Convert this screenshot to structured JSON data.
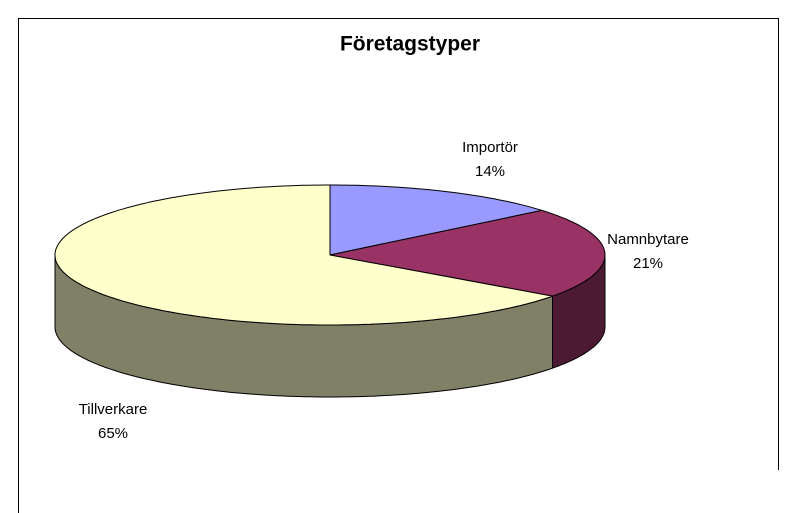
{
  "chart_data": {
    "type": "pie",
    "title": "Företagstyper",
    "categories": [
      "Importör",
      "Namnbytare",
      "Tillverkare"
    ],
    "values": [
      14,
      21,
      65
    ],
    "value_labels": [
      "14%",
      "21%",
      "65%"
    ],
    "colors": [
      "#9999ff",
      "#993366",
      "#ffffcc"
    ]
  }
}
